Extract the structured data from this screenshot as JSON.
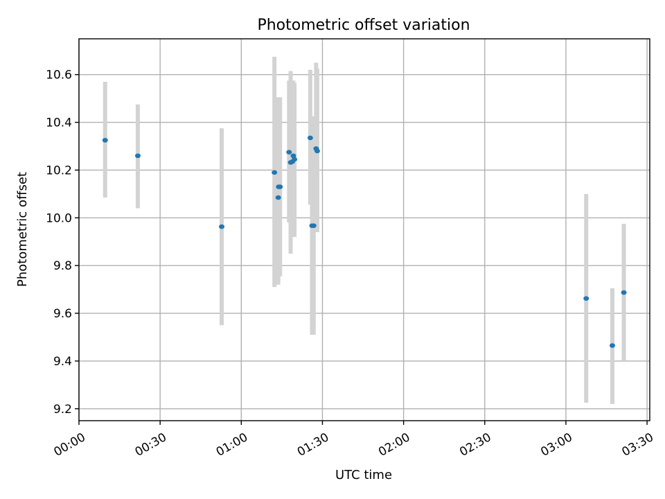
{
  "chart_data": {
    "type": "scatter",
    "title": "Photometric offset variation",
    "xlabel": "UTC time",
    "ylabel": "Photometric offset",
    "xlim": [
      "00:00",
      "03:31"
    ],
    "ylim": [
      9.15,
      10.75
    ],
    "x_ticks": [
      "00:00",
      "00:30",
      "01:00",
      "01:30",
      "02:00",
      "02:30",
      "03:00",
      "03:30"
    ],
    "y_ticks": [
      "9.2",
      "9.4",
      "9.6",
      "9.8",
      "10.0",
      "10.2",
      "10.4",
      "10.6"
    ],
    "grid": true,
    "colors": {
      "points": "#1f77b4",
      "error_bars": "#d3d3d3"
    },
    "points": [
      {
        "x": "00:09:40",
        "y": 10.325,
        "yerr_low": 10.085,
        "yerr_high": 10.57
      },
      {
        "x": "00:21:45",
        "y": 10.26,
        "yerr_low": 10.04,
        "yerr_high": 10.475
      },
      {
        "x": "00:52:45",
        "y": 9.963,
        "yerr_low": 9.55,
        "yerr_high": 10.375
      },
      {
        "x": "01:12:15",
        "y": 10.19,
        "yerr_low": 9.71,
        "yerr_high": 10.675
      },
      {
        "x": "01:13:40",
        "y": 10.085,
        "yerr_low": 9.72,
        "yerr_high": 10.505
      },
      {
        "x": "01:13:50",
        "y": 10.13,
        "yerr_low": 9.755,
        "yerr_high": 10.505
      },
      {
        "x": "01:14:20",
        "y": 10.13,
        "yerr_low": 9.755,
        "yerr_high": 10.505
      },
      {
        "x": "01:17:40",
        "y": 10.275,
        "yerr_low": 9.98,
        "yerr_high": 10.575
      },
      {
        "x": "01:18:15",
        "y": 10.232,
        "yerr_low": 9.85,
        "yerr_high": 10.615
      },
      {
        "x": "01:18:50",
        "y": 10.235,
        "yerr_low": 9.92,
        "yerr_high": 10.565
      },
      {
        "x": "01:19:15",
        "y": 10.26,
        "yerr_low": 9.98,
        "yerr_high": 10.575
      },
      {
        "x": "01:19:40",
        "y": 10.245,
        "yerr_low": 9.92,
        "yerr_high": 10.565
      },
      {
        "x": "01:25:30",
        "y": 10.335,
        "yerr_low": 10.055,
        "yerr_high": 10.62
      },
      {
        "x": "01:26:10",
        "y": 9.967,
        "yerr_low": 9.51,
        "yerr_high": 10.425
      },
      {
        "x": "01:26:45",
        "y": 9.967,
        "yerr_low": 9.51,
        "yerr_high": 10.425
      },
      {
        "x": "01:27:40",
        "y": 10.29,
        "yerr_low": 9.94,
        "yerr_high": 10.65
      },
      {
        "x": "01:28:05",
        "y": 10.28,
        "yerr_low": 9.94,
        "yerr_high": 10.625
      },
      {
        "x": "03:07:30",
        "y": 9.662,
        "yerr_low": 9.225,
        "yerr_high": 10.1
      },
      {
        "x": "03:17:10",
        "y": 9.465,
        "yerr_low": 9.22,
        "yerr_high": 9.705
      },
      {
        "x": "03:21:25",
        "y": 9.687,
        "yerr_low": 9.4,
        "yerr_high": 9.975
      }
    ]
  }
}
